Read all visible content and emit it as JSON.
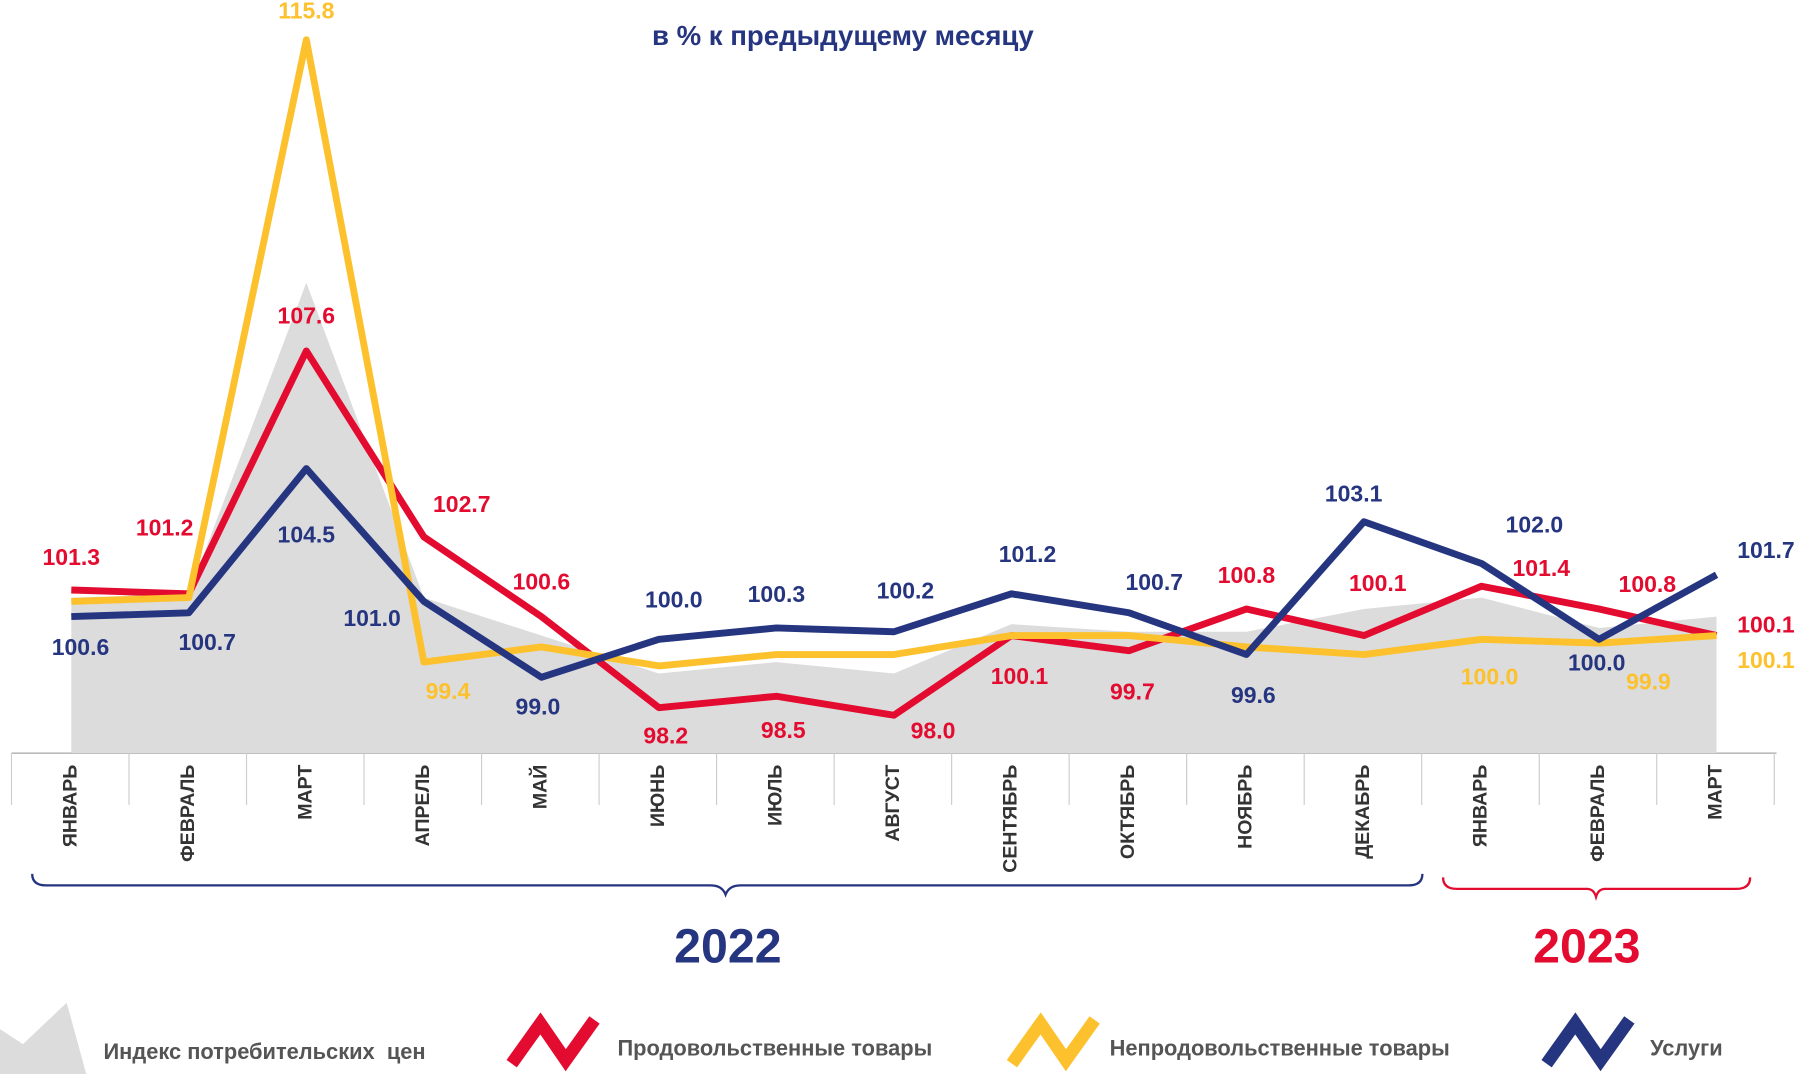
{
  "chart_data": {
    "type": "line",
    "title": "в % к предыдущему месяцу",
    "categories": [
      "ЯНВАРЬ",
      "ФЕВРАЛЬ",
      "МАРТ",
      "АПРЕЛЬ",
      "МАЙ",
      "ИЮНЬ",
      "ИЮЛЬ",
      "АВГУСТ",
      "СЕНТЯБРЬ",
      "ОКТЯБРЬ",
      "НОЯБРЬ",
      "ДЕКАБРЬ",
      "ЯНВАРЬ",
      "ФЕВРАЛЬ",
      "МАРТ"
    ],
    "groups": [
      {
        "label": "2022",
        "color": "#263580"
      },
      {
        "label": "2023",
        "color": "#e30b2f"
      }
    ],
    "ylim": [
      97,
      117
    ],
    "series": [
      {
        "name": "Индекс потребительских  цен",
        "color": "#dcdcdc",
        "area": true,
        "values": [
          101.1,
          101.2,
          109.4,
          101.1,
          100.1,
          99.1,
          99.4,
          99.1,
          100.4,
          100.2,
          100.2,
          100.8,
          101.1,
          100.3,
          100.6
        ]
      },
      {
        "name": "Продовольственные товары",
        "color": "#e30b2f",
        "values": [
          101.3,
          101.2,
          107.6,
          102.7,
          100.6,
          98.2,
          98.5,
          98.0,
          100.1,
          99.7,
          100.8,
          100.1,
          101.4,
          100.8,
          100.1
        ],
        "value_labels": [
          "101.3",
          "101.2",
          "107.6",
          "102.7",
          "100.6",
          "98.2",
          "98.5",
          "98.0",
          "100.1",
          "99.7",
          "100.8",
          "100.1",
          "101.4",
          "100.8",
          "100.1"
        ]
      },
      {
        "name": "Непродовольственные товары",
        "color": "#fcc12d",
        "values": [
          101.0,
          101.1,
          115.8,
          99.4,
          99.8,
          99.3,
          99.6,
          99.6,
          100.1,
          100.1,
          99.8,
          99.6,
          100.0,
          99.9,
          100.1
        ],
        "value_labels": [
          null,
          null,
          "115.8",
          "99.4",
          null,
          null,
          null,
          null,
          null,
          null,
          null,
          null,
          "100.0",
          "99.9",
          "100.1"
        ]
      },
      {
        "name": "Услуги",
        "color": "#263580",
        "values": [
          100.6,
          100.7,
          104.5,
          101.0,
          99.0,
          100.0,
          100.3,
          100.2,
          101.2,
          100.7,
          99.6,
          103.1,
          102.0,
          100.0,
          101.7
        ],
        "value_labels": [
          "100.6",
          "100.7",
          "104.5",
          "101.0",
          "99.0",
          "100.0",
          "100.3",
          "100.2",
          "101.2",
          "100.7",
          "99.6",
          "103.1",
          "102.0",
          "100.0",
          "101.7"
        ]
      }
    ]
  }
}
